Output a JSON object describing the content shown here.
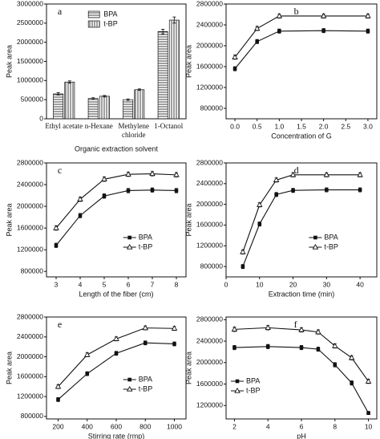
{
  "chart_data": [
    {
      "type": "bar",
      "label": "a",
      "ylabel": "Peak area",
      "xlabel": "Organic extraction solvent",
      "categories": [
        "Ethyl acetate",
        "n-Hexane",
        "Methylene chloride",
        "1-Octanol"
      ],
      "series": [
        {
          "name": "BPA",
          "color": "#111111",
          "pattern": "horizontal",
          "values": [
            650000,
            530000,
            500000,
            2280000
          ],
          "errors": [
            30000,
            20000,
            20000,
            60000
          ]
        },
        {
          "name": "t-BP",
          "color": "#111111",
          "pattern": "vertical",
          "values": [
            960000,
            590000,
            760000,
            2580000
          ],
          "errors": [
            30000,
            20000,
            20000,
            80000
          ]
        }
      ],
      "ylim": [
        0,
        3000000
      ],
      "yticks": [
        0,
        500000,
        1000000,
        1500000,
        2000000,
        2500000,
        3000000
      ],
      "legend": "upper left"
    },
    {
      "type": "line",
      "label": "b",
      "ylabel": "Peak area",
      "xlabel": "Concentration of G",
      "x": [
        0,
        0.5,
        1,
        2,
        3
      ],
      "series": [
        {
          "name": "BPA",
          "color": "#111111",
          "marker": "square",
          "values": [
            1560000,
            2080000,
            2280000,
            2290000,
            2280000
          ],
          "errors": [
            40000,
            40000,
            40000,
            40000,
            40000
          ]
        },
        {
          "name": "t-BP",
          "color": "#111111",
          "marker": "triangle",
          "values": [
            1780000,
            2330000,
            2570000,
            2570000,
            2570000
          ],
          "errors": [
            40000,
            40000,
            40000,
            40000,
            40000
          ]
        }
      ],
      "xlim": [
        -0.2,
        3.2
      ],
      "xticks": [
        {
          "value": 0,
          "label": "0.0"
        },
        {
          "value": 0.5,
          "label": "0.5"
        },
        {
          "value": 1,
          "label": "1.0"
        },
        {
          "value": 1.5,
          "label": "1.5"
        },
        {
          "value": 2,
          "label": "2.0"
        },
        {
          "value": 2.5,
          "label": "2.5"
        },
        {
          "value": 3,
          "label": "3.0"
        }
      ],
      "ylim": [
        600000,
        2800000
      ],
      "yticks": [
        800000,
        1200000,
        1600000,
        2000000,
        2400000,
        2800000
      ],
      "legend": false
    },
    {
      "type": "line",
      "label": "c",
      "ylabel": "Peak area",
      "xlabel": "Length of the fiber (cm)",
      "x": [
        3,
        4,
        5,
        6,
        7,
        8
      ],
      "series": [
        {
          "name": "BPA",
          "color": "#111111",
          "marker": "square",
          "values": [
            1280000,
            1830000,
            2190000,
            2290000,
            2300000,
            2290000
          ],
          "errors": [
            40000,
            40000,
            40000,
            40000,
            40000,
            40000
          ]
        },
        {
          "name": "t-BP",
          "color": "#111111",
          "marker": "triangle",
          "values": [
            1600000,
            2130000,
            2500000,
            2590000,
            2600000,
            2580000
          ],
          "errors": [
            40000,
            40000,
            40000,
            40000,
            40000,
            40000
          ]
        }
      ],
      "xlim": [
        2.6,
        8.4
      ],
      "xticks": [
        3,
        4,
        5,
        6,
        7,
        8
      ],
      "ylim": [
        700000,
        2800000
      ],
      "yticks": [
        800000,
        1200000,
        1600000,
        2000000,
        2400000,
        2800000
      ],
      "legend": "lower right"
    },
    {
      "type": "line",
      "label": "d",
      "ylabel": "Peak area",
      "xlabel": "Extraction time (min)",
      "x": [
        5,
        10,
        15,
        20,
        30,
        40
      ],
      "series": [
        {
          "name": "BPA",
          "color": "#111111",
          "marker": "square",
          "values": [
            800000,
            1620000,
            2190000,
            2270000,
            2280000,
            2280000
          ],
          "errors": [
            40000,
            40000,
            40000,
            40000,
            40000,
            40000
          ]
        },
        {
          "name": "t-BP",
          "color": "#111111",
          "marker": "triangle",
          "values": [
            1080000,
            1990000,
            2470000,
            2570000,
            2570000,
            2570000
          ],
          "errors": [
            40000,
            40000,
            40000,
            40000,
            40000,
            40000
          ]
        }
      ],
      "xlim": [
        0,
        45
      ],
      "xticks": [
        0,
        10,
        20,
        30,
        40
      ],
      "ylim": [
        600000,
        2800000
      ],
      "yticks": [
        800000,
        1200000,
        1600000,
        2000000,
        2400000,
        2800000
      ],
      "legend": "lower right"
    },
    {
      "type": "line",
      "label": "e",
      "ylabel": "Peak area",
      "xlabel": "Stirring rate (rmp)",
      "x": [
        200,
        400,
        600,
        800,
        1000
      ],
      "series": [
        {
          "name": "BPA",
          "color": "#111111",
          "marker": "square",
          "values": [
            1140000,
            1660000,
            2070000,
            2280000,
            2260000
          ],
          "errors": [
            40000,
            40000,
            40000,
            40000,
            40000
          ]
        },
        {
          "name": "t-BP",
          "color": "#111111",
          "marker": "triangle",
          "values": [
            1400000,
            2040000,
            2360000,
            2580000,
            2570000
          ],
          "errors": [
            40000,
            40000,
            40000,
            40000,
            40000
          ]
        }
      ],
      "xlim": [
        120,
        1080
      ],
      "xticks": [
        200,
        400,
        600,
        800,
        1000
      ],
      "ylim": [
        750000,
        2800000
      ],
      "yticks": [
        800000,
        1200000,
        1600000,
        2000000,
        2400000,
        2800000
      ],
      "legend": "lower right"
    },
    {
      "type": "line",
      "label": "f",
      "ylabel": "Peak area",
      "xlabel": "pH",
      "x": [
        2,
        4,
        6,
        7,
        8,
        9,
        10
      ],
      "series": [
        {
          "name": "BPA",
          "color": "#111111",
          "marker": "square",
          "values": [
            2280000,
            2300000,
            2280000,
            2250000,
            1960000,
            1620000,
            1060000
          ],
          "errors": [
            40000,
            40000,
            40000,
            40000,
            40000,
            40000,
            30000
          ]
        },
        {
          "name": "t-BP",
          "color": "#111111",
          "marker": "triangle",
          "values": [
            2620000,
            2650000,
            2610000,
            2570000,
            2310000,
            2090000,
            1650000
          ],
          "errors": [
            40000,
            40000,
            40000,
            40000,
            40000,
            40000,
            40000
          ]
        }
      ],
      "xlim": [
        1.5,
        10.5
      ],
      "xticks": [
        2,
        4,
        6,
        8,
        10
      ],
      "ylim": [
        950000,
        2850000
      ],
      "yticks": [
        1200000,
        1600000,
        2000000,
        2400000,
        2800000
      ],
      "legend": "lower left"
    }
  ]
}
